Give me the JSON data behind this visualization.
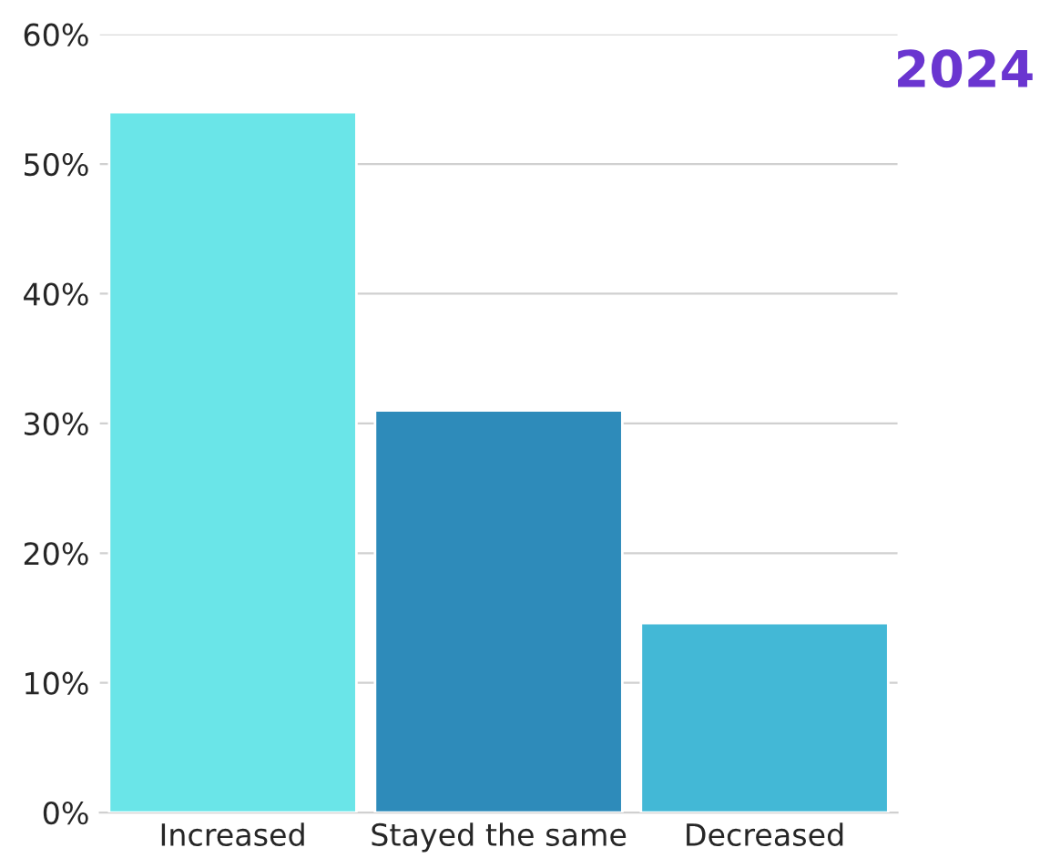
{
  "chart_data": {
    "type": "bar",
    "categories": [
      "Increased",
      "Stayed the same",
      "Decreased"
    ],
    "values": [
      54,
      31,
      14.6
    ],
    "colors": [
      "#6ae5e8",
      "#2e8bba",
      "#43b8d6"
    ],
    "ylim": [
      0,
      60
    ],
    "yticks": [
      {
        "value": 0,
        "label": "0%"
      },
      {
        "value": 10,
        "label": "10%"
      },
      {
        "value": 20,
        "label": "20%"
      },
      {
        "value": 30,
        "label": "30%"
      },
      {
        "value": 40,
        "label": "40%"
      },
      {
        "value": 50,
        "label": "50%"
      },
      {
        "value": 60,
        "label": "60%"
      }
    ],
    "grid": "y",
    "annotations": [
      "2024"
    ]
  }
}
